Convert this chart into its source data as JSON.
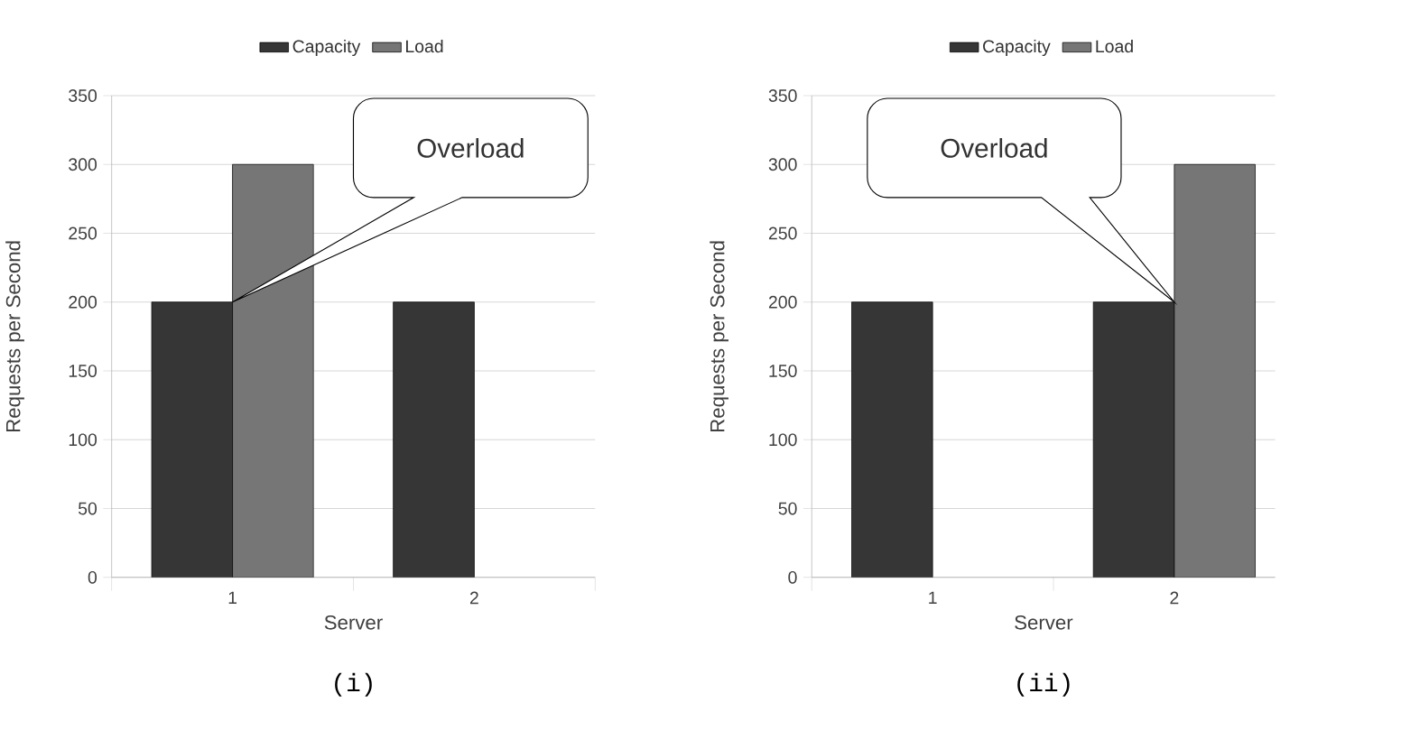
{
  "chart_data": [
    {
      "type": "bar",
      "categories": [
        "1",
        "2"
      ],
      "xlabel": "Server",
      "ylabel": "Requests per Second",
      "series": [
        {
          "name": "Capacity",
          "color": "#363636",
          "values": [
            200,
            200
          ]
        },
        {
          "name": "Load",
          "color": "#767676",
          "values": [
            300,
            null
          ]
        }
      ],
      "ylim": [
        0,
        350
      ],
      "yticks": [
        0,
        50,
        100,
        150,
        200,
        250,
        300,
        350
      ],
      "grid": "y",
      "legend": "top",
      "annotations": [
        "Overload",
        "(i)"
      ]
    },
    {
      "type": "bar",
      "categories": [
        "1",
        "2"
      ],
      "xlabel": "Server",
      "ylabel": "Requests per Second",
      "series": [
        {
          "name": "Capacity",
          "color": "#363636",
          "values": [
            200,
            200
          ]
        },
        {
          "name": "Load",
          "color": "#767676",
          "values": [
            null,
            300
          ]
        }
      ],
      "ylim": [
        0,
        350
      ],
      "yticks": [
        0,
        50,
        100,
        150,
        200,
        250,
        300,
        350
      ],
      "grid": "y",
      "legend": "top",
      "annotations": [
        "Overload",
        "(ii)"
      ]
    }
  ]
}
